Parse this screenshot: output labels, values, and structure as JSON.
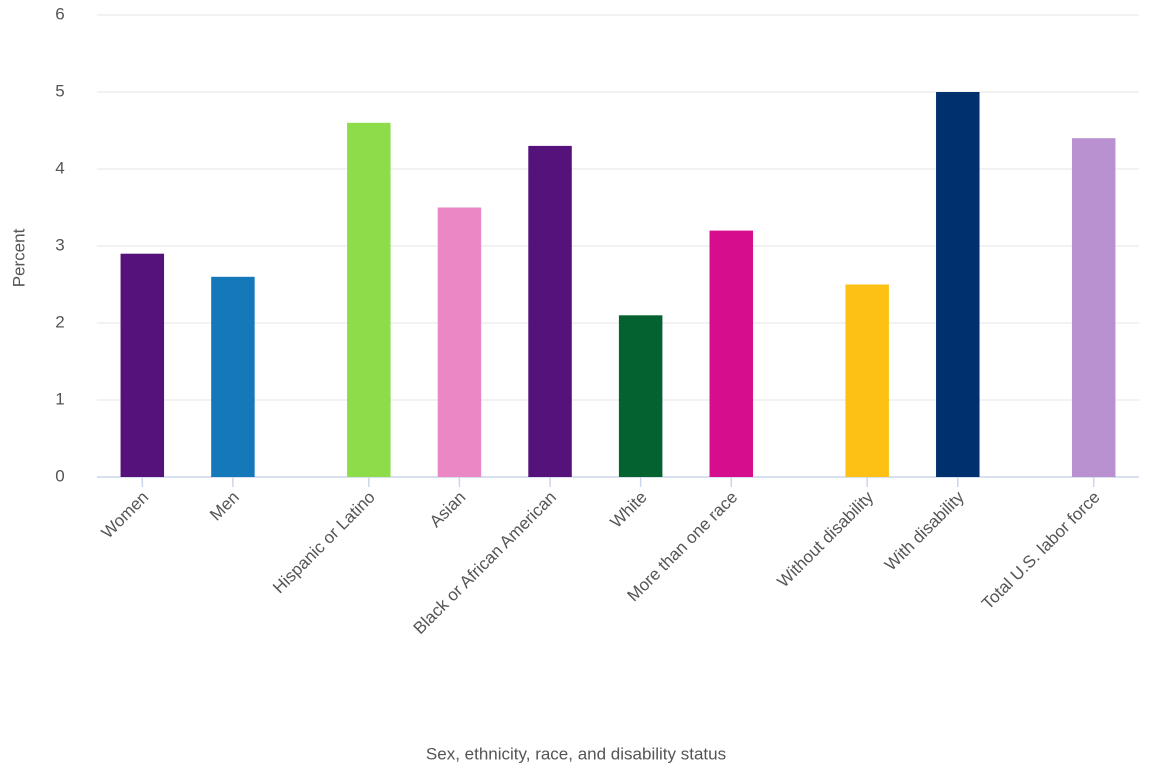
{
  "chart_data": {
    "type": "bar",
    "x_label": "Sex, ethnicity, race, and disability status",
    "y_label": "Percent",
    "categories": [
      "Women",
      "Men",
      null,
      "Hispanic or Latino",
      "Asian",
      "Black or African American",
      "White",
      "More than one race",
      null,
      "Without disability",
      "With disability",
      null,
      "Total U.S. labor force"
    ],
    "values": [
      2.9,
      2.6,
      null,
      4.6,
      3.5,
      4.3,
      2.1,
      3.2,
      null,
      2.5,
      5.0,
      null,
      4.4
    ],
    "colors": [
      "#54127a",
      "#1579b9",
      null,
      "#8fdc4b",
      "#ea87c4",
      "#54127a",
      "#046130",
      "#d60d8c",
      null,
      "#fdc115",
      "#01306e",
      null,
      "#b990d0"
    ],
    "ylim": [
      0,
      6
    ],
    "yticks": [
      0,
      1,
      2,
      3,
      4,
      5,
      6
    ],
    "grid": true
  }
}
